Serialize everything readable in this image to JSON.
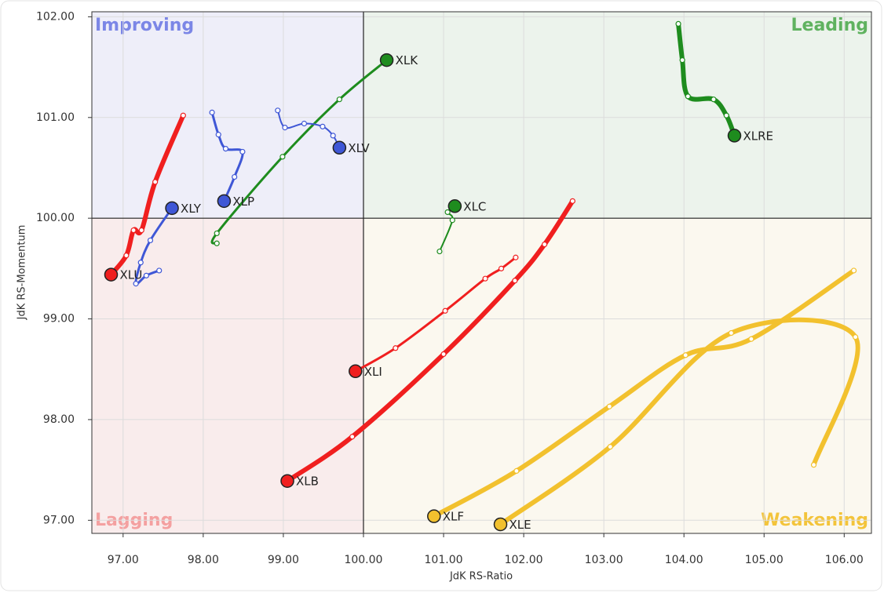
{
  "chart_data": {
    "type": "rrg",
    "x_label": "JdK RS-Ratio",
    "y_label": "JdK RS-Momentum",
    "xlim": [
      96.61,
      106.34
    ],
    "ylim": [
      96.87,
      102.05
    ],
    "center": [
      100,
      100
    ],
    "grid": true,
    "xticks": [
      {
        "value": 97,
        "label": "97.00"
      },
      {
        "value": 98,
        "label": "98.00"
      },
      {
        "value": 99,
        "label": "99.00"
      },
      {
        "value": 100,
        "label": "100.00"
      },
      {
        "value": 101,
        "label": "101.00"
      },
      {
        "value": 102,
        "label": "102.00"
      },
      {
        "value": 103,
        "label": "103.00"
      },
      {
        "value": 104,
        "label": "104.00"
      },
      {
        "value": 105,
        "label": "105.00"
      },
      {
        "value": 106,
        "label": "106.00"
      }
    ],
    "yticks": [
      {
        "value": 97,
        "label": "97.00"
      },
      {
        "value": 98,
        "label": "98.00"
      },
      {
        "value": 99,
        "label": "99.00"
      },
      {
        "value": 100,
        "label": "100.00"
      },
      {
        "value": 101,
        "label": "101.00"
      },
      {
        "value": 102,
        "label": "102.00"
      }
    ],
    "quadrants": [
      {
        "name": "Improving",
        "position": "top-left",
        "color": "#7b86e6",
        "fill": "#eeeef9"
      },
      {
        "name": "Leading",
        "position": "top-right",
        "color": "#5fb25f",
        "fill": "#ecf3ec"
      },
      {
        "name": "Lagging",
        "position": "bottom-left",
        "color": "#f4a0a0",
        "fill": "#f9ecec"
      },
      {
        "name": "Weakening",
        "position": "bottom-right",
        "color": "#f3c43b",
        "fill": "#fbf8ef"
      }
    ],
    "series": [
      {
        "name": "XLK",
        "color": "#1e8c1e",
        "line_width": 3,
        "x": [
          98.17,
          98.17,
          98.99,
          99.7,
          100.29
        ],
        "y": [
          99.75,
          99.85,
          100.61,
          101.18,
          101.57
        ]
      },
      {
        "name": "XLV",
        "color": "#3f57d6",
        "line_width": 2,
        "x": [
          98.93,
          99.02,
          99.26,
          99.49,
          99.62,
          99.7
        ],
        "y": [
          101.07,
          100.9,
          100.94,
          100.91,
          100.82,
          100.7
        ]
      },
      {
        "name": "XLP",
        "color": "#3f57d6",
        "line_width": 3,
        "x": [
          98.11,
          98.19,
          98.28,
          98.49,
          98.39,
          98.26
        ],
        "y": [
          101.05,
          100.83,
          100.69,
          100.66,
          100.41,
          100.17
        ]
      },
      {
        "name": "XLY",
        "color": "#3f57d6",
        "line_width": 3,
        "x": [
          97.45,
          97.29,
          97.16,
          97.22,
          97.34,
          97.61
        ],
        "y": [
          99.48,
          99.43,
          99.35,
          99.56,
          99.78,
          100.1
        ]
      },
      {
        "name": "XLU",
        "color": "#f01f1f",
        "line_width": 6,
        "x": [
          97.75,
          97.4,
          97.23,
          97.13,
          97.04,
          96.85
        ],
        "y": [
          101.02,
          100.36,
          99.88,
          99.88,
          99.63,
          99.44
        ]
      },
      {
        "name": "XLC",
        "color": "#1e8c1e",
        "line_width": 2,
        "x": [
          100.95,
          101.11,
          101.05,
          101.14
        ],
        "y": [
          99.67,
          99.98,
          100.06,
          100.12
        ]
      },
      {
        "name": "XLRE",
        "color": "#1e8c1e",
        "line_width": 6,
        "x": [
          103.93,
          103.98,
          104.05,
          104.37,
          104.53,
          104.63
        ],
        "y": [
          101.93,
          101.57,
          101.21,
          101.18,
          101.02,
          100.82
        ]
      },
      {
        "name": "XLI",
        "color": "#f01f1f",
        "line_width": 3,
        "x": [
          101.9,
          101.72,
          101.52,
          101.02,
          100.4,
          99.9
        ],
        "y": [
          99.61,
          99.5,
          99.4,
          99.08,
          98.71,
          98.48
        ]
      },
      {
        "name": "XLB",
        "color": "#f01f1f",
        "line_width": 6,
        "x": [
          102.61,
          102.26,
          101.89,
          101.0,
          99.86,
          99.05
        ],
        "y": [
          100.17,
          99.74,
          99.38,
          98.65,
          97.83,
          97.39
        ]
      },
      {
        "name": "XLF",
        "color": "#f2c12e",
        "line_width": 6,
        "x": [
          106.12,
          104.84,
          104.02,
          103.07,
          101.91,
          100.88
        ],
        "y": [
          99.48,
          98.8,
          98.64,
          98.13,
          97.49,
          97.04
        ]
      },
      {
        "name": "XLE",
        "color": "#f2c12e",
        "line_width": 6,
        "x": [
          105.62,
          106.14,
          104.59,
          103.08,
          101.71
        ],
        "y": [
          97.55,
          98.82,
          98.86,
          97.73,
          96.96
        ]
      }
    ]
  }
}
